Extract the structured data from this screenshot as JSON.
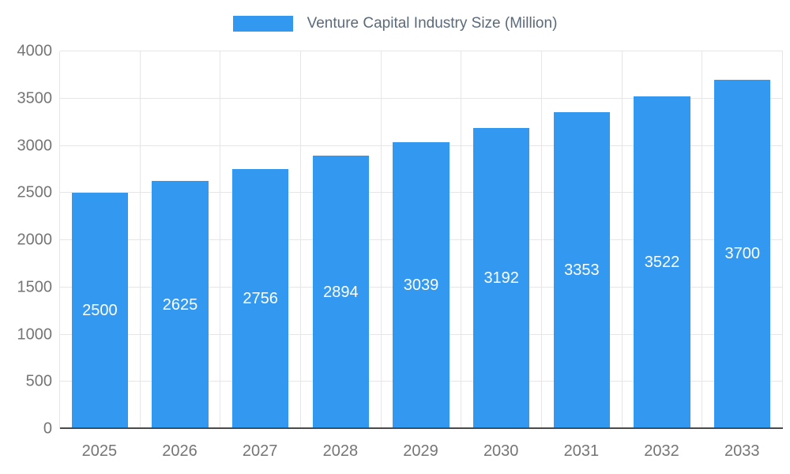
{
  "legend": {
    "label": "Venture Capital Industry Size (Million)"
  },
  "chart_data": {
    "type": "bar",
    "title": "Venture Capital Industry Size (Million)",
    "categories": [
      "2025",
      "2026",
      "2027",
      "2028",
      "2029",
      "2030",
      "2031",
      "2032",
      "2033"
    ],
    "values": [
      2500,
      2625,
      2756,
      2894,
      3039,
      3192,
      3353,
      3522,
      3700
    ],
    "xlabel": "",
    "ylabel": "",
    "ylim": [
      0,
      4000
    ],
    "yticks": [
      0,
      500,
      1000,
      1500,
      2000,
      2500,
      3000,
      3500,
      4000
    ],
    "grid": true,
    "legend_position": "top",
    "bar_color": "#3398f0",
    "bar_label_color": "#ffffff",
    "axis_text_color": "#757575",
    "gridline_color": "#e6e6e6"
  }
}
